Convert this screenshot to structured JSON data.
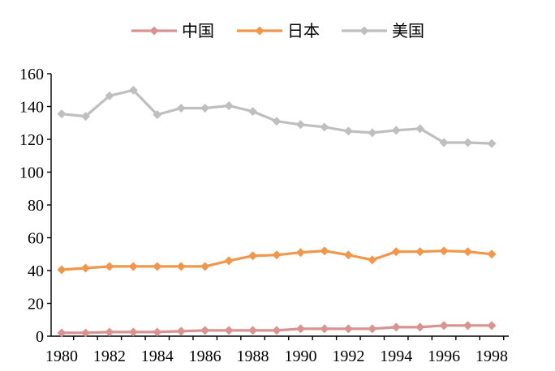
{
  "chart_data": {
    "type": "line",
    "title": "",
    "xlabel": "",
    "ylabel": "",
    "ylim": [
      0,
      160
    ],
    "yticks": [
      0,
      20,
      40,
      60,
      80,
      100,
      120,
      140,
      160
    ],
    "x": [
      1980,
      1981,
      1982,
      1983,
      1984,
      1985,
      1986,
      1987,
      1988,
      1989,
      1990,
      1991,
      1992,
      1993,
      1994,
      1995,
      1996,
      1997,
      1998
    ],
    "xtick_labels": [
      "1980",
      "1982",
      "1984",
      "1986",
      "1988",
      "1990",
      "1992",
      "1994",
      "1996",
      "1998"
    ],
    "grid": false,
    "legend_position": "top-center",
    "series": [
      {
        "name": "中国",
        "color": "#d99391",
        "values": [
          2,
          2,
          2.5,
          2.5,
          2.5,
          3,
          3.5,
          3.5,
          3.5,
          3.5,
          4.5,
          4.5,
          4.5,
          4.5,
          5.5,
          5.5,
          6.5,
          6.5,
          6.5
        ]
      },
      {
        "name": "日本",
        "color": "#f0974b",
        "values": [
          40.5,
          41.5,
          42.5,
          42.5,
          42.5,
          42.5,
          42.5,
          46,
          49,
          49.5,
          51,
          52,
          49.5,
          46.5,
          51.5,
          51.5,
          52,
          51.5,
          50
        ]
      },
      {
        "name": "美国",
        "color": "#bfbfbf",
        "values": [
          135.5,
          134,
          146.5,
          150,
          135,
          139,
          139,
          140.5,
          137,
          131,
          129,
          127.5,
          125,
          124,
          125.5,
          126.5,
          118,
          118,
          117.5
        ]
      }
    ]
  }
}
